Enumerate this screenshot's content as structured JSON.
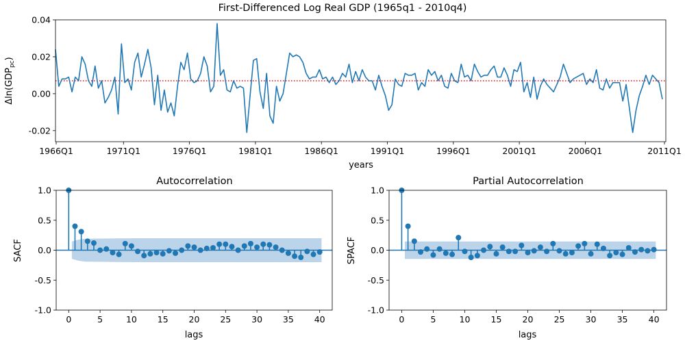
{
  "colors": {
    "series": "#1f77b4",
    "band": "#a6c5e3",
    "mean_line": "#ff0000"
  },
  "chart_data": [
    {
      "type": "line",
      "title": "First-Differenced Log Real GDP (1965q1 - 2010q4)",
      "xlabel": "years",
      "ylabel_main": "Δln(GDP",
      "ylabel_sub": "pc",
      "ylabel_end": ")",
      "x_start_quarter": "1965Q2",
      "x_ticks": [
        "1966Q1",
        "1971Q1",
        "1976Q1",
        "1981Q1",
        "1986Q1",
        "1991Q1",
        "1996Q1",
        "2001Q1",
        "2006Q1",
        "2011Q1"
      ],
      "y_ticks": [
        "0.04",
        "0.02",
        "0.00",
        "-0.02"
      ],
      "ylim": [
        -0.026,
        0.04
      ],
      "mean": 0.007,
      "values": [
        0.024,
        0.004,
        0.008,
        0.008,
        0.009,
        0.001,
        0.009,
        0.007,
        0.02,
        0.016,
        0.007,
        0.004,
        0.015,
        0.003,
        0.007,
        -0.005,
        -0.002,
        0.002,
        0.009,
        -0.011,
        0.027,
        0.006,
        0.008,
        0.002,
        0.017,
        0.022,
        0.009,
        0.016,
        0.024,
        0.014,
        -0.006,
        0.01,
        -0.009,
        0.002,
        -0.01,
        -0.005,
        -0.012,
        0.004,
        0.017,
        0.013,
        0.022,
        0.008,
        0.006,
        0.007,
        0.011,
        0.02,
        0.015,
        0.001,
        0.004,
        0.038,
        0.01,
        0.013,
        0.002,
        0.001,
        0.007,
        0.003,
        0.004,
        0.003,
        -0.021,
        -0.001,
        0.018,
        0.019,
        0.001,
        -0.008,
        0.011,
        -0.012,
        -0.016,
        0.004,
        -0.004,
        0.0,
        0.011,
        0.022,
        0.02,
        0.021,
        0.02,
        0.017,
        0.011,
        0.008,
        0.009,
        0.009,
        0.013,
        0.008,
        0.009,
        0.006,
        0.009,
        0.005,
        0.007,
        0.011,
        0.009,
        0.016,
        0.006,
        0.012,
        0.007,
        0.013,
        0.009,
        0.007,
        0.007,
        0.002,
        0.01,
        0.004,
        -0.001,
        -0.009,
        -0.006,
        0.008,
        0.005,
        0.004,
        0.011,
        0.01,
        0.01,
        0.011,
        0.002,
        0.006,
        0.004,
        0.013,
        0.01,
        0.012,
        0.007,
        0.01,
        0.004,
        0.003,
        0.011,
        0.007,
        0.006,
        0.016,
        0.009,
        0.01,
        0.007,
        0.016,
        0.012,
        0.009,
        0.01,
        0.01,
        0.013,
        0.015,
        0.009,
        0.009,
        0.014,
        0.01,
        0.004,
        0.013,
        0.012,
        0.017,
        0.001,
        0.006,
        -0.002,
        0.009,
        -0.003,
        0.004,
        0.008,
        0.005,
        0.003,
        0.001,
        0.005,
        0.009,
        0.016,
        0.011,
        0.006,
        0.008,
        0.009,
        0.01,
        0.011,
        0.005,
        0.008,
        0.006,
        0.013,
        0.003,
        0.002,
        0.008,
        0.003,
        0.006,
        0.006,
        0.006,
        -0.004,
        0.005,
        -0.008,
        -0.021,
        -0.009,
        -0.001,
        0.004,
        0.01,
        0.005,
        0.01,
        0.008,
        0.006,
        -0.003
      ]
    },
    {
      "type": "stem",
      "title": "Autocorrelation",
      "xlabel": "lags",
      "ylabel": "SACF",
      "ylim": [
        -1.0,
        1.0
      ],
      "xlim": [
        -2,
        42
      ],
      "x_ticks": [
        "0",
        "5",
        "10",
        "15",
        "20",
        "25",
        "30",
        "35",
        "40"
      ],
      "y_ticks": [
        "1.0",
        "0.5",
        "0.0",
        "-0.5",
        "-1.0"
      ],
      "lags": [
        0,
        1,
        2,
        3,
        4,
        5,
        6,
        7,
        8,
        9,
        10,
        11,
        12,
        13,
        14,
        15,
        16,
        17,
        18,
        19,
        20,
        21,
        22,
        23,
        24,
        25,
        26,
        27,
        28,
        29,
        30,
        31,
        32,
        33,
        34,
        35,
        36,
        37,
        38,
        39,
        40
      ],
      "values": [
        1.0,
        0.4,
        0.31,
        0.15,
        0.12,
        0.0,
        0.02,
        -0.04,
        -0.07,
        0.11,
        0.07,
        -0.02,
        -0.09,
        -0.06,
        -0.04,
        -0.06,
        -0.01,
        -0.05,
        0.0,
        0.07,
        0.05,
        0.0,
        0.03,
        0.04,
        0.1,
        0.1,
        0.06,
        0.0,
        0.07,
        0.11,
        0.05,
        0.1,
        0.09,
        0.05,
        0.0,
        -0.05,
        -0.1,
        -0.12,
        -0.02,
        -0.07,
        -0.03
      ],
      "confidence_band": [
        0.145,
        0.175,
        0.19,
        0.192,
        0.194,
        0.195,
        0.196,
        0.197,
        0.198,
        0.199,
        0.2
      ]
    },
    {
      "type": "stem",
      "title": "Partial Autocorrelation",
      "xlabel": "lags",
      "ylabel": "SPACF",
      "ylim": [
        -1.0,
        1.0
      ],
      "xlim": [
        -2,
        42
      ],
      "x_ticks": [
        "0",
        "5",
        "10",
        "15",
        "20",
        "25",
        "30",
        "35",
        "40"
      ],
      "y_ticks": [
        "1.0",
        "0.5",
        "0.0",
        "-0.5",
        "-1.0"
      ],
      "lags": [
        0,
        1,
        2,
        3,
        4,
        5,
        6,
        7,
        8,
        9,
        10,
        11,
        12,
        13,
        14,
        15,
        16,
        17,
        18,
        19,
        20,
        21,
        22,
        23,
        24,
        25,
        26,
        27,
        28,
        29,
        30,
        31,
        32,
        33,
        34,
        35,
        36,
        37,
        38,
        39,
        40
      ],
      "values": [
        1.0,
        0.4,
        0.15,
        -0.03,
        0.02,
        -0.08,
        0.02,
        -0.05,
        -0.07,
        0.21,
        -0.02,
        -0.12,
        -0.09,
        0.0,
        0.06,
        -0.06,
        0.05,
        -0.02,
        -0.02,
        0.08,
        -0.04,
        -0.01,
        0.05,
        -0.02,
        0.11,
        -0.01,
        -0.06,
        -0.04,
        0.07,
        0.11,
        -0.06,
        0.1,
        0.03,
        -0.09,
        -0.04,
        -0.07,
        0.04,
        -0.03,
        0.01,
        -0.01,
        0.01
      ],
      "confidence_band": [
        0.145
      ]
    }
  ]
}
